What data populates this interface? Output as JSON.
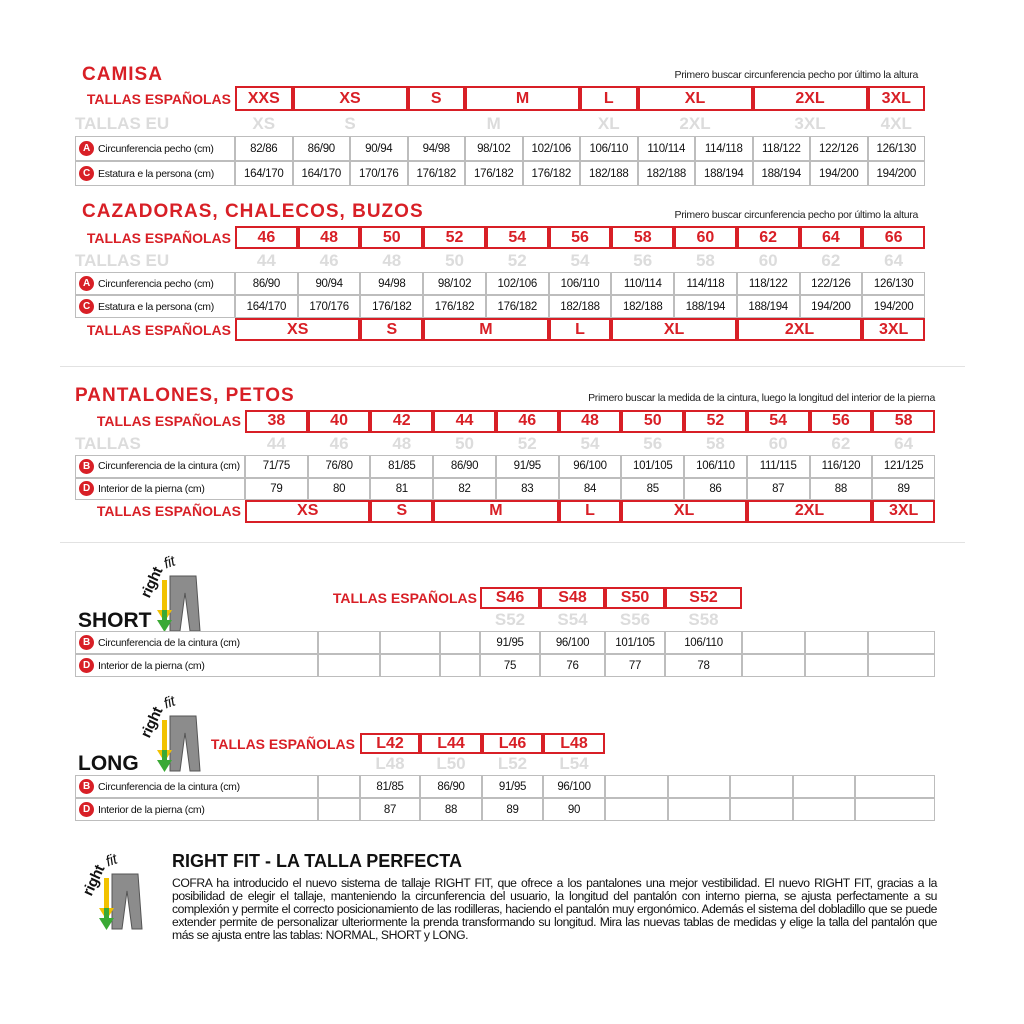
{
  "camisa": {
    "title": "CAMISA",
    "note": "Primero buscar circunferencia pecho por último la altura",
    "sizes_label": "TALLAS ESPAÑOLAS",
    "sizes": [
      "XXS",
      "XS",
      "S",
      "M",
      "L",
      "XL",
      "2XL",
      "3XL"
    ],
    "eu_label": "TALLAS EU",
    "eu": [
      "XS",
      "S",
      "M",
      "XL",
      "2XL",
      "3XL",
      "4XL"
    ],
    "rows": [
      {
        "marker": "A",
        "label": "Circunferencia pecho (cm)",
        "values": [
          "82/86",
          "86/90",
          "90/94",
          "94/98",
          "98/102",
          "102/106",
          "106/110",
          "110/114",
          "114/118",
          "118/122",
          "122/126",
          "126/130"
        ]
      },
      {
        "marker": "C",
        "label": "Estatura e la persona (cm)",
        "values": [
          "164/170",
          "164/170",
          "170/176",
          "176/182",
          "176/182",
          "176/182",
          "182/188",
          "182/188",
          "188/194",
          "188/194",
          "194/200",
          "194/200"
        ]
      }
    ]
  },
  "cazadoras": {
    "title": "CAZADORAS, CHALECOS, BUZOS",
    "note": "Primero buscar circunferencia pecho por último la altura",
    "sizes_label": "TALLAS ESPAÑOLAS",
    "sizes": [
      46,
      48,
      50,
      52,
      54,
      56,
      58,
      60,
      62,
      64,
      66
    ],
    "eu_label": "TALLAS EU",
    "eu": [
      44,
      46,
      48,
      50,
      52,
      54,
      56,
      58,
      60,
      62,
      64
    ],
    "rows": [
      {
        "marker": "A",
        "label": "Circunferencia pecho (cm)",
        "values": [
          "86/90",
          "90/94",
          "94/98",
          "98/102",
          "102/106",
          "106/110",
          "110/114",
          "114/118",
          "118/122",
          "122/126",
          "126/130"
        ]
      },
      {
        "marker": "C",
        "label": "Estatura e la persona (cm)",
        "values": [
          "164/170",
          "170/176",
          "176/182",
          "176/182",
          "176/182",
          "182/188",
          "182/188",
          "188/194",
          "188/194",
          "194/200",
          "194/200"
        ]
      }
    ],
    "bottom_label": "TALLAS ESPAÑOLAS",
    "bottom": [
      "XS",
      "S",
      "M",
      "L",
      "XL",
      "2XL",
      "3XL"
    ]
  },
  "pantalones": {
    "title": "PANTALONES, PETOS",
    "note": "Primero buscar la medida de la cintura, luego la longitud del interior de la pierna",
    "sizes_label": "TALLAS ESPAÑOLAS",
    "sizes": [
      38,
      40,
      42,
      44,
      46,
      48,
      50,
      52,
      54,
      56,
      58
    ],
    "eu_label": "TALLAS",
    "eu": [
      44,
      46,
      48,
      50,
      52,
      54,
      56,
      58,
      60,
      62,
      64
    ],
    "rows": [
      {
        "marker": "B",
        "label": "Circunferencia de la cintura (cm)",
        "values": [
          "71/75",
          "76/80",
          "81/85",
          "86/90",
          "91/95",
          "96/100",
          "101/105",
          "106/110",
          "111/115",
          "116/120",
          "121/125"
        ]
      },
      {
        "marker": "D",
        "label": "Interior de la pierna (cm)",
        "values": [
          79,
          80,
          81,
          82,
          83,
          84,
          85,
          86,
          87,
          88,
          89
        ]
      }
    ],
    "bottom_label": "TALLAS ESPAÑOLAS",
    "bottom": [
      "XS",
      "S",
      "M",
      "L",
      "XL",
      "2XL",
      "3XL"
    ]
  },
  "short": {
    "logo": [
      "right",
      "fit"
    ],
    "title": "SHORT",
    "sizes_label": "TALLAS ESPAÑOLAS",
    "sizes": [
      "S46",
      "S48",
      "S50",
      "S52"
    ],
    "eu": [
      "S52",
      "S54",
      "S56",
      "S58"
    ],
    "rows": [
      {
        "marker": "B",
        "label": "Circunferencia de la cintura (cm)",
        "values": [
          "91/95",
          "96/100",
          "101/105",
          "106/110"
        ]
      },
      {
        "marker": "D",
        "label": "Interior de la pierna (cm)",
        "values": [
          75,
          76,
          77,
          78
        ]
      }
    ]
  },
  "long": {
    "logo": [
      "right",
      "fit"
    ],
    "title": "LONG",
    "sizes_label": "TALLAS ESPAÑOLAS",
    "sizes": [
      "L42",
      "L44",
      "L46",
      "L48"
    ],
    "eu": [
      "L48",
      "L50",
      "L52",
      "L54"
    ],
    "rows": [
      {
        "marker": "B",
        "label": "Circunferencia de la cintura (cm)",
        "values": [
          "81/85",
          "86/90",
          "91/95",
          "96/100"
        ]
      },
      {
        "marker": "D",
        "label": "Interior de la pierna (cm)",
        "values": [
          87,
          88,
          89,
          90
        ]
      }
    ]
  },
  "footer": {
    "logo": [
      "right",
      "fit"
    ],
    "title": "RIGHT FIT - LA TALLA PERFECTA",
    "text": "COFRA ha introducido el nuevo sistema de tallaje RIGHT FIT, que ofrece a los pantalones una mejor vestibilidad. El nuevo RIGHT FIT, gracias a la posibilidad de elegir el tallaje, manteniendo la circunferencia del usuario, la longitud del pantalón con interno pierna, se ajusta perfectamente a su complexión y permite el correcto posicionamiento de las rodilleras, haciendo el pantalón muy ergonómico. Además el sistema del dobladillo que se puede extender permite de personalizar ulteriormente la prenda transformando su longitud. Mira las nuevas tablas de medidas y elige la talla del pantalón que más se ajusta entre las tablas: NORMAL, SHORT y LONG."
  }
}
